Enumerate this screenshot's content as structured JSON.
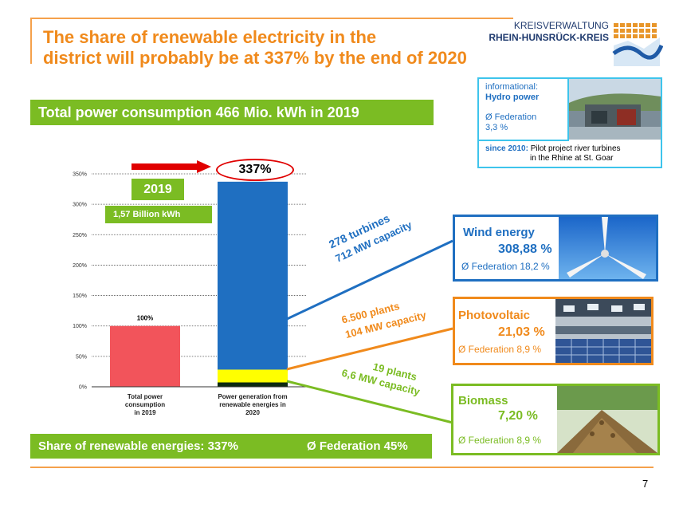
{
  "slide": {
    "title_line1": "The share of renewable electricity in the",
    "title_line2": "district will probably be at 337% by the end of 2020",
    "page_number": "7"
  },
  "logo": {
    "line1": "KREISVERWALTUNG",
    "line2": "RHEIN-HUNSRÜCK-KREIS"
  },
  "header_banner": "Total power consumption 466 Mio. kWh in 2019",
  "footer_banner": {
    "share_text": "Share of renewable energies:  337%",
    "federation_text": "Ø Federation 45%"
  },
  "callouts": {
    "year_label": "2019",
    "billion_label": "1,57 Billion kWh",
    "pct_337": "337%",
    "pct_100": "100%"
  },
  "annotations": {
    "wind_line1": "278 turbines",
    "wind_line2": "712 MW capacity",
    "pv_line1": "6.500 plants",
    "pv_line2": "104 MW capacity",
    "bio_line1": "19 plants",
    "bio_line2": "6,6 MW capacity"
  },
  "hydro": {
    "line1": "informational:",
    "line2": "Hydro power",
    "line3": "Ø Federation",
    "line4": "3,3 %",
    "since_label": "since 2010:",
    "since_text1": "Pilot project river turbines",
    "since_text2": "in the Rhine at St. Goar"
  },
  "boxes": {
    "wind": {
      "title": "Wind energy",
      "pct": "308,88 %",
      "fed": "Ø Federation 18,2 %"
    },
    "pv": {
      "title": "Photovoltaic",
      "pct": "21,03 %",
      "fed": "Ø Federation 8,9 %"
    },
    "bio": {
      "title": "Biomass",
      "pct": "7,20 %",
      "fed": "Ø Federation 8,9 %"
    }
  },
  "colors": {
    "orange": "#f08a1c",
    "green": "#7bbc23",
    "blue": "#1f6fc1",
    "red": "#f2545b",
    "yellow": "#ffff00",
    "dark": "#0d2a10"
  },
  "chart_data": {
    "type": "bar",
    "title": "",
    "xlabel": "",
    "ylabel": "",
    "ylim": [
      0,
      350
    ],
    "yticks": [
      "0%",
      "50%",
      "100%",
      "150%",
      "200%",
      "250%",
      "300%",
      "350%"
    ],
    "categories": [
      "Total power consumption in 2019",
      "Power generation from renewable energies in 2020"
    ],
    "category_lines": [
      [
        "Total power",
        "consumption",
        "in 2019"
      ],
      [
        "Power generation from",
        "renewable energies in",
        "2020"
      ]
    ],
    "series": [
      {
        "name": "Total power consumption",
        "values": [
          100,
          0
        ],
        "color": "#f2545b"
      },
      {
        "name": "Biomass",
        "values": [
          0,
          7.2
        ],
        "color": "#0d2a10"
      },
      {
        "name": "Photovoltaic",
        "values": [
          0,
          21.03
        ],
        "color": "#ffff00"
      },
      {
        "name": "Wind energy",
        "values": [
          0,
          308.88
        ],
        "color": "#1f6fc1"
      }
    ]
  }
}
